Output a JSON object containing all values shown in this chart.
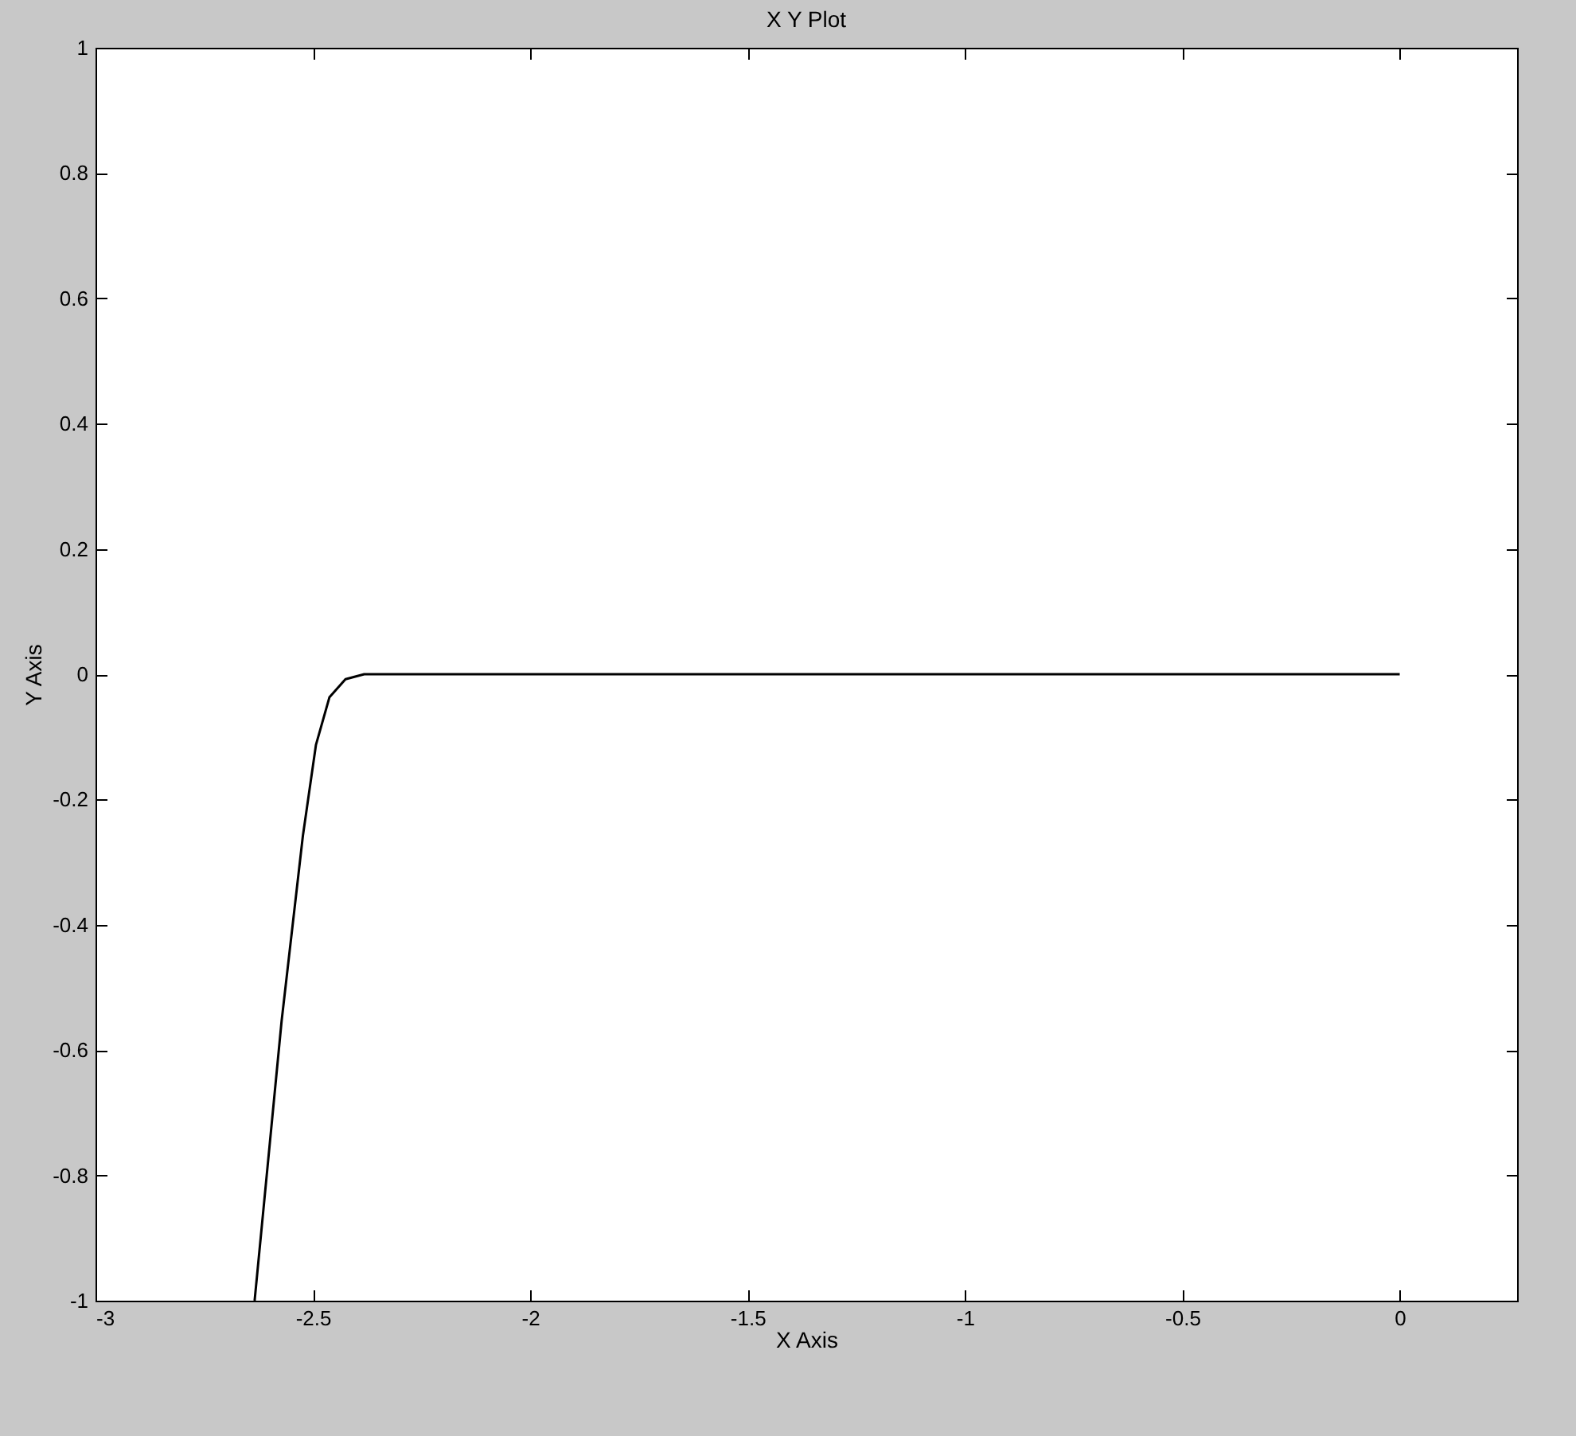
{
  "chart_data": {
    "type": "line",
    "title": "X Y Plot",
    "xlabel": "X Axis",
    "ylabel": "Y Axis",
    "xlim": [
      -3,
      0.27
    ],
    "ylim": [
      -1,
      1
    ],
    "xticks": [
      -3,
      -2.5,
      -2,
      -1.5,
      -1,
      -0.5,
      0
    ],
    "yticks": [
      -1,
      -0.8,
      -0.6,
      -0.4,
      -0.2,
      0,
      0.2,
      0.4,
      0.6,
      0.8,
      1
    ],
    "grid": false,
    "marker": "none",
    "line_style": "solid",
    "series": [
      {
        "color": "#000000",
        "x": [
          -2.634,
          -2.572,
          -2.523,
          -2.493,
          -2.462,
          -2.425,
          -2.382,
          0
        ],
        "values": [
          -1,
          -0.554,
          -0.258,
          -0.113,
          -0.037,
          -0.008,
          0,
          0
        ]
      }
    ]
  }
}
